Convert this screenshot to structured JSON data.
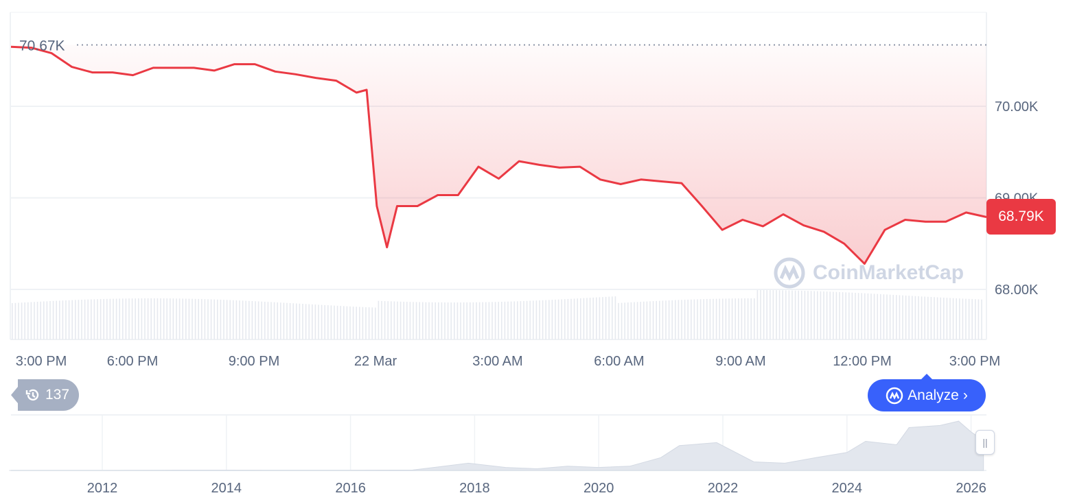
{
  "chart_data": {
    "type": "area",
    "title": "",
    "xlabel": "",
    "ylabel": "",
    "x_ticks": [
      "3:00 PM",
      "6:00 PM",
      "9:00 PM",
      "22 Mar",
      "3:00 AM",
      "6:00 AM",
      "9:00 AM",
      "12:00 PM",
      "3:00 PM"
    ],
    "y_ticks": [
      "70.00K",
      "69.00K",
      "68.00K"
    ],
    "y_tick_values": [
      70000,
      69000,
      68000
    ],
    "ylim": [
      67900,
      71030
    ],
    "grid": true,
    "line_color": "#ea3943",
    "series": [
      {
        "x": [
          "21 Mar 15:00",
          "15:30",
          "16:00",
          "16:30",
          "17:00",
          "17:30",
          "18:00",
          "18:30",
          "19:00",
          "19:30",
          "20:00",
          "20:30",
          "21:00",
          "21:30",
          "22:00",
          "22:30",
          "23:00",
          "23:30",
          "23:45",
          "22 Mar 00:00",
          "00:15",
          "00:30",
          "01:00",
          "01:30",
          "02:00",
          "02:30",
          "03:00",
          "03:30",
          "04:00",
          "04:30",
          "05:00",
          "05:30",
          "06:00",
          "06:30",
          "07:00",
          "07:30",
          "08:00",
          "08:30",
          "09:00",
          "09:30",
          "10:00",
          "10:30",
          "11:00",
          "11:30",
          "12:00",
          "12:30",
          "13:00",
          "13:30",
          "14:00",
          "14:30",
          "15:00"
        ],
        "values": [
          70650,
          70640,
          70580,
          70430,
          70370,
          70370,
          70340,
          70420,
          70420,
          70420,
          70390,
          70460,
          70460,
          70380,
          70350,
          70310,
          70280,
          70150,
          70180,
          68910,
          68460,
          68910,
          68910,
          69030,
          69030,
          69340,
          69210,
          69400,
          69360,
          69330,
          69340,
          69200,
          69150,
          69200,
          69180,
          69160,
          68910,
          68650,
          68760,
          68690,
          68820,
          68700,
          68630,
          68500,
          68280,
          68650,
          68760,
          68740,
          68740,
          68840,
          68790
        ]
      }
    ],
    "reference_line": {
      "label": "70.67K",
      "value": 70670
    },
    "current_price": {
      "label": "68.79K",
      "value": 68790,
      "color": "#ea3943"
    },
    "navigator": {
      "x_ticks": [
        "2012",
        "2014",
        "2016",
        "2018",
        "2020",
        "2022",
        "2024",
        "2026"
      ],
      "years": [
        2010.5,
        2012,
        2013,
        2014,
        2015,
        2016,
        2017,
        2017.9,
        2018.5,
        2019,
        2019.5,
        2020,
        2020.5,
        2021,
        2021.3,
        2021.9,
        2022.5,
        2023,
        2023.5,
        2024,
        2024.3,
        2024.8,
        2025,
        2025.5,
        2025.8,
        2026,
        2026.2
      ],
      "values": [
        0,
        0,
        0.5,
        0.6,
        0.3,
        0.4,
        1,
        17,
        7,
        4,
        10,
        7,
        10,
        30,
        58,
        65,
        20,
        17,
        30,
        42,
        68,
        60,
        100,
        105,
        115,
        90,
        70
      ]
    }
  },
  "badges": {
    "history_count": "137",
    "analyze_label": "Analyze"
  },
  "watermark": "CoinMarketCap",
  "icons": {
    "history": "history-icon",
    "analyze": "analyze-icon",
    "chevron": "chevron-right-icon",
    "handle": "pause-handle-icon"
  }
}
